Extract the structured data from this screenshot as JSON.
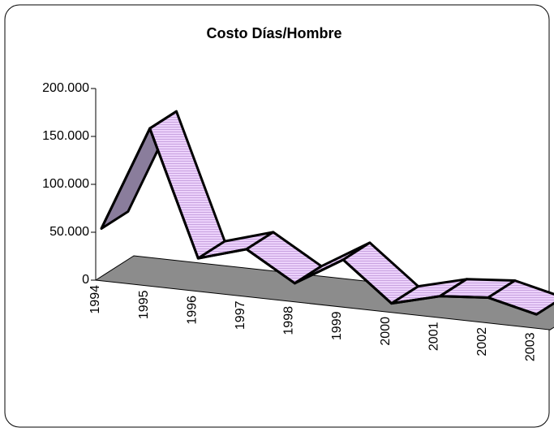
{
  "chart_data": {
    "type": "line3d",
    "title": "Costo Días/Hombre",
    "categories": [
      "1994",
      "1995",
      "1996",
      "1997",
      "1998",
      "1999",
      "2000",
      "2001",
      "2002",
      "2003"
    ],
    "values": [
      50000,
      160000,
      30000,
      45000,
      15000,
      45000,
      5000,
      18000,
      22000,
      10000
    ],
    "color": "#e8c8f8",
    "ylim": [
      0,
      200000
    ],
    "yticks": [
      0,
      {
        "value": 50000,
        "label": "50.000"
      },
      {
        "value": 100000,
        "label": "100.000"
      },
      {
        "value": 150000,
        "label": "150.000"
      },
      {
        "value": 200000,
        "label": "200.000"
      }
    ]
  }
}
